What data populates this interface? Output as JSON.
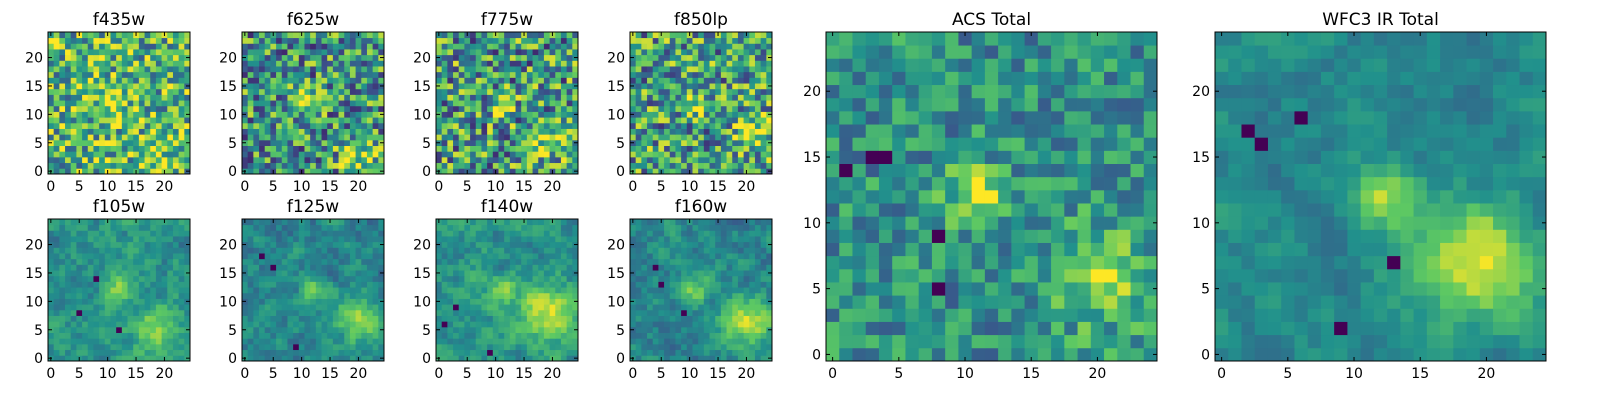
{
  "figure": {
    "background": "#ffffff",
    "colormap": "viridis",
    "colormap_stops": [
      "#440154",
      "#3b528b",
      "#21918c",
      "#5ec962",
      "#fde725"
    ]
  },
  "chart_data": [
    {
      "type": "heatmap",
      "title": "f435w",
      "xlabel": "",
      "ylabel": "",
      "grid_size": [
        25,
        25
      ],
      "xlim": [
        -0.5,
        24.5
      ],
      "ylim": [
        -0.5,
        24.5
      ],
      "xticks": [
        0,
        5,
        10,
        15,
        20
      ],
      "yticks": [
        0,
        5,
        10,
        15,
        20
      ],
      "texture": "noisy",
      "base_level": 0.66,
      "noise": 0.38,
      "sources": [
        {
          "x": 11,
          "y": 12,
          "amp": 0.3,
          "sigma": 2.0
        },
        {
          "x": 20,
          "y": 4,
          "amp": 0.12,
          "sigma": 2.5
        }
      ],
      "dark_spots": []
    },
    {
      "type": "heatmap",
      "title": "f625w",
      "xlabel": "",
      "ylabel": "",
      "grid_size": [
        25,
        25
      ],
      "xlim": [
        -0.5,
        24.5
      ],
      "ylim": [
        -0.5,
        24.5
      ],
      "xticks": [
        0,
        5,
        10,
        15,
        20
      ],
      "yticks": [
        0,
        5,
        10,
        15,
        20
      ],
      "texture": "noisy",
      "base_level": 0.52,
      "noise": 0.4,
      "sources": [
        {
          "x": 11,
          "y": 12,
          "amp": 0.35,
          "sigma": 1.6
        },
        {
          "x": 20,
          "y": 3,
          "amp": 0.4,
          "sigma": 2.2
        }
      ],
      "dark_spots": []
    },
    {
      "type": "heatmap",
      "title": "f775w",
      "xlabel": "",
      "ylabel": "",
      "grid_size": [
        25,
        25
      ],
      "xlim": [
        -0.5,
        24.5
      ],
      "ylim": [
        -0.5,
        24.5
      ],
      "xticks": [
        0,
        5,
        10,
        15,
        20
      ],
      "yticks": [
        0,
        5,
        10,
        15,
        20
      ],
      "texture": "noisy",
      "base_level": 0.54,
      "noise": 0.42,
      "sources": [
        {
          "x": 11,
          "y": 12,
          "amp": 0.4,
          "sigma": 1.6
        },
        {
          "x": 19,
          "y": 5,
          "amp": 0.25,
          "sigma": 2.5
        }
      ],
      "dark_spots": []
    },
    {
      "type": "heatmap",
      "title": "f850lp",
      "xlabel": "",
      "ylabel": "",
      "grid_size": [
        25,
        25
      ],
      "xlim": [
        -0.5,
        24.5
      ],
      "ylim": [
        -0.5,
        24.5
      ],
      "xticks": [
        0,
        5,
        10,
        15,
        20
      ],
      "yticks": [
        0,
        5,
        10,
        15,
        20
      ],
      "texture": "noisy",
      "base_level": 0.56,
      "noise": 0.4,
      "sources": [
        {
          "x": 11,
          "y": 12,
          "amp": 0.3,
          "sigma": 1.6
        },
        {
          "x": 21,
          "y": 7,
          "amp": 0.35,
          "sigma": 2.2
        }
      ],
      "dark_spots": []
    },
    {
      "type": "heatmap",
      "title": "f105w",
      "xlabel": "",
      "ylabel": "",
      "grid_size": [
        25,
        25
      ],
      "xlim": [
        -0.5,
        24.5
      ],
      "ylim": [
        -0.5,
        24.5
      ],
      "xticks": [
        0,
        5,
        10,
        15,
        20
      ],
      "yticks": [
        0,
        5,
        10,
        15,
        20
      ],
      "texture": "smooth",
      "base_level": 0.5,
      "noise": 0.16,
      "sources": [
        {
          "x": 12,
          "y": 12,
          "amp": 0.32,
          "sigma": 1.8
        },
        {
          "x": 18,
          "y": 5,
          "amp": 0.35,
          "sigma": 2.8
        }
      ],
      "dark_spots": [
        {
          "x": 8,
          "y": 14
        },
        {
          "x": 5,
          "y": 8
        },
        {
          "x": 12,
          "y": 5
        }
      ]
    },
    {
      "type": "heatmap",
      "title": "f125w",
      "xlabel": "",
      "ylabel": "",
      "grid_size": [
        25,
        25
      ],
      "xlim": [
        -0.5,
        24.5
      ],
      "ylim": [
        -0.5,
        24.5
      ],
      "xticks": [
        0,
        5,
        10,
        15,
        20
      ],
      "yticks": [
        0,
        5,
        10,
        15,
        20
      ],
      "texture": "smooth",
      "base_level": 0.44,
      "noise": 0.16,
      "sources": [
        {
          "x": 12,
          "y": 12,
          "amp": 0.32,
          "sigma": 1.8
        },
        {
          "x": 20,
          "y": 7,
          "amp": 0.42,
          "sigma": 3.0
        }
      ],
      "dark_spots": [
        {
          "x": 3,
          "y": 18
        },
        {
          "x": 5,
          "y": 16
        },
        {
          "x": 9,
          "y": 2
        }
      ]
    },
    {
      "type": "heatmap",
      "title": "f140w",
      "xlabel": "",
      "ylabel": "",
      "grid_size": [
        25,
        25
      ],
      "xlim": [
        -0.5,
        24.5
      ],
      "ylim": [
        -0.5,
        24.5
      ],
      "xticks": [
        0,
        5,
        10,
        15,
        20
      ],
      "yticks": [
        0,
        5,
        10,
        15,
        20
      ],
      "texture": "smooth",
      "base_level": 0.5,
      "noise": 0.16,
      "sources": [
        {
          "x": 11,
          "y": 12,
          "amp": 0.32,
          "sigma": 1.8
        },
        {
          "x": 19,
          "y": 8,
          "amp": 0.42,
          "sigma": 3.4
        }
      ],
      "dark_spots": [
        {
          "x": 3,
          "y": 9
        },
        {
          "x": 1,
          "y": 6
        },
        {
          "x": 9,
          "y": 1
        }
      ]
    },
    {
      "type": "heatmap",
      "title": "f160w",
      "xlabel": "",
      "ylabel": "",
      "grid_size": [
        25,
        25
      ],
      "xlim": [
        -0.5,
        24.5
      ],
      "ylim": [
        -0.5,
        24.5
      ],
      "xticks": [
        0,
        5,
        10,
        15,
        20
      ],
      "yticks": [
        0,
        5,
        10,
        15,
        20
      ],
      "texture": "smooth",
      "base_level": 0.46,
      "noise": 0.16,
      "sources": [
        {
          "x": 11,
          "y": 12,
          "amp": 0.34,
          "sigma": 1.8
        },
        {
          "x": 20,
          "y": 6,
          "amp": 0.46,
          "sigma": 3.0
        }
      ],
      "dark_spots": [
        {
          "x": 4,
          "y": 16
        },
        {
          "x": 5,
          "y": 13
        },
        {
          "x": 9,
          "y": 8
        }
      ]
    },
    {
      "type": "heatmap",
      "title": "ACS Total",
      "xlabel": "",
      "ylabel": "",
      "grid_size": [
        25,
        25
      ],
      "xlim": [
        -0.5,
        24.5
      ],
      "ylim": [
        -0.5,
        24.5
      ],
      "xticks": [
        0,
        5,
        10,
        15,
        20
      ],
      "yticks": [
        0,
        5,
        10,
        15,
        20
      ],
      "texture": "noisy",
      "base_level": 0.5,
      "noise": 0.22,
      "sources": [
        {
          "x": 11,
          "y": 12,
          "amp": 0.45,
          "sigma": 1.6
        },
        {
          "x": 20,
          "y": 6,
          "amp": 0.35,
          "sigma": 2.6
        }
      ],
      "dark_spots": [
        {
          "x": 1,
          "y": 14
        },
        {
          "x": 3,
          "y": 15
        },
        {
          "x": 4,
          "y": 15
        },
        {
          "x": 8,
          "y": 9
        },
        {
          "x": 8,
          "y": 5
        }
      ]
    },
    {
      "type": "heatmap",
      "title": "WFC3 IR Total",
      "xlabel": "",
      "ylabel": "",
      "grid_size": [
        25,
        25
      ],
      "xlim": [
        -0.5,
        24.5
      ],
      "ylim": [
        -0.5,
        24.5
      ],
      "xticks": [
        0,
        5,
        10,
        15,
        20
      ],
      "yticks": [
        0,
        5,
        10,
        15,
        20
      ],
      "texture": "smooth",
      "base_level": 0.46,
      "noise": 0.12,
      "sources": [
        {
          "x": 12,
          "y": 12,
          "amp": 0.4,
          "sigma": 1.7
        },
        {
          "x": 19,
          "y": 7,
          "amp": 0.5,
          "sigma": 3.2
        }
      ],
      "dark_spots": [
        {
          "x": 2,
          "y": 17
        },
        {
          "x": 3,
          "y": 16
        },
        {
          "x": 6,
          "y": 18
        },
        {
          "x": 9,
          "y": 2
        },
        {
          "x": 13,
          "y": 7
        }
      ]
    }
  ]
}
